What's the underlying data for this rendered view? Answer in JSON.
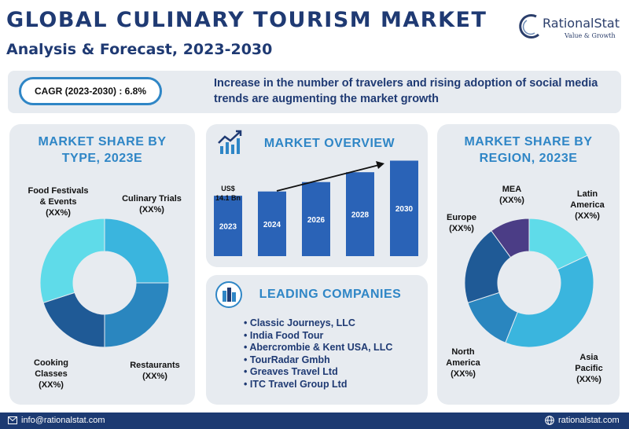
{
  "header": {
    "title": "GLOBAL CULINARY TOURISM MARKET",
    "subtitle": "Analysis & Forecast, 2023-2030",
    "logo_name": "RationalStat",
    "logo_tagline": "Value & Growth"
  },
  "banner": {
    "cagr": "CAGR (2023-2030) : 6.8%",
    "statement": "Increase in the number of travelers and rising adoption of social media trends are augmenting the market growth"
  },
  "panels": {
    "type": "MARKET SHARE BY TYPE, 2023E",
    "overview": "MARKET OVERVIEW",
    "companies": "LEADING COMPANIES",
    "region": "MARKET SHARE BY REGION, 2023E"
  },
  "companies": [
    "Classic Journeys, LLC",
    "India Food Tour",
    "Abercrombie & Kent USA, LLC",
    "TourRadar Gmbh",
    "Greaves Travel Ltd",
    "ITC Travel Group Ltd"
  ],
  "footer": {
    "email": "info@rationalstat.com",
    "website": "rationalstat.com"
  },
  "colors": {
    "navy": "#1f3a73",
    "accent": "#2f86c6",
    "bar": "#2a63b7",
    "panel": "#e7ebf0"
  },
  "chart_data": [
    {
      "type": "bar",
      "categories": [
        "2023",
        "2024",
        "2026",
        "2028",
        "2030"
      ],
      "values": [
        14.1,
        15.1,
        17.3,
        19.6,
        22.3
      ],
      "annotation": "US$ 14.1 Bn",
      "ylim": [
        0,
        25
      ]
    },
    {
      "type": "pie",
      "labels": [
        "Culinary Trials (XX%)",
        "Restaurants (XX%)",
        "Cooking Classes (XX%)",
        "Food Festivals & Events (XX%)"
      ],
      "values": [
        25,
        25,
        20,
        30
      ],
      "colors": [
        "#3ab5de",
        "#2a86bf",
        "#1f5a96",
        "#5fdbe9"
      ]
    },
    {
      "type": "pie",
      "labels": [
        "Latin America (XX%)",
        "Asia Pacific (XX%)",
        "North America (XX%)",
        "Europe (XX%)",
        "MEA (XX%)"
      ],
      "values": [
        18,
        38,
        14,
        20,
        10
      ],
      "colors": [
        "#5fdbe9",
        "#3ab5de",
        "#2a86bf",
        "#1f5a96",
        "#4b3d86"
      ]
    }
  ]
}
